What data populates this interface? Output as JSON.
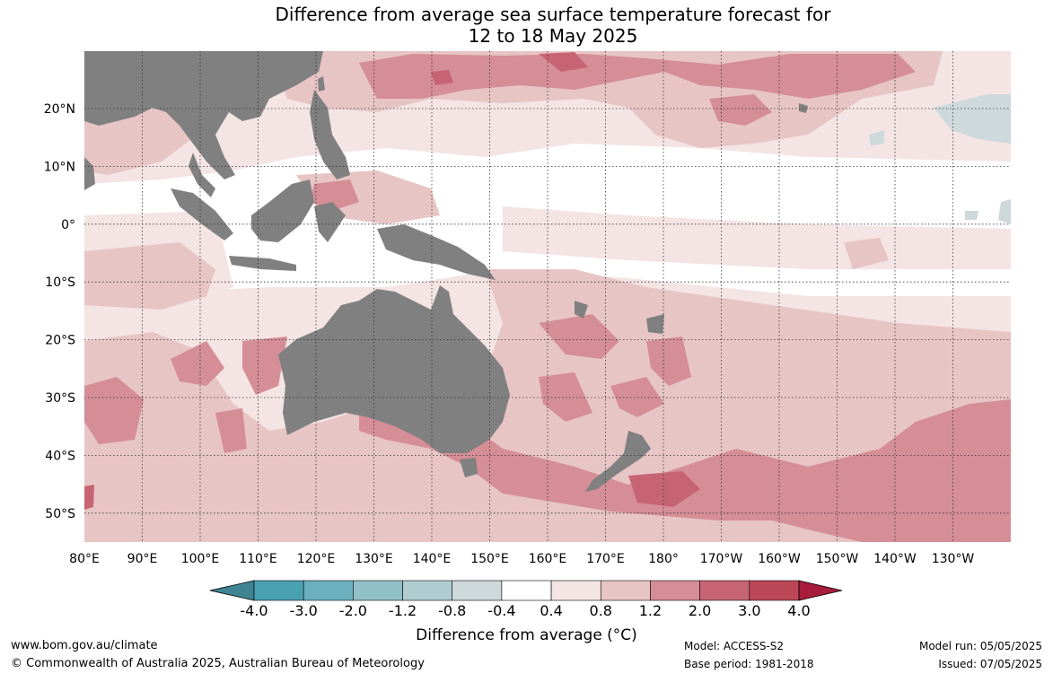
{
  "title": {
    "line1": "Difference from average sea surface temperature forecast for",
    "line2": "12 to 18 May 2025"
  },
  "map": {
    "lon_labels": [
      "80°E",
      "90°E",
      "100°E",
      "110°E",
      "120°E",
      "130°E",
      "140°E",
      "150°E",
      "160°E",
      "170°E",
      "180°",
      "170°W",
      "160°W",
      "150°W",
      "140°W",
      "130°W"
    ],
    "lat_labels": [
      "20°N",
      "10°N",
      "0°",
      "10°S",
      "20°S",
      "30°S",
      "40°S",
      "50°S"
    ],
    "land_color": "#808080",
    "grid": "dotted",
    "extent": {
      "lon_min": 80,
      "lon_max": 240,
      "lat_min": -55,
      "lat_max": 30
    }
  },
  "colorbar": {
    "ticks": [
      "-4.0",
      "-3.0",
      "-2.0",
      "-1.2",
      "-0.8",
      "-0.4",
      "0.4",
      "0.8",
      "1.2",
      "2.0",
      "3.0",
      "4.0"
    ],
    "colors": [
      "#3e8493",
      "#49a1b2",
      "#6cb0bf",
      "#92c0c8",
      "#b0cdd2",
      "#ced9db",
      "#ffffff",
      "#f4e4e4",
      "#e7c5c4",
      "#d58d96",
      "#c76474",
      "#bb4655",
      "#a81d3c"
    ],
    "label": "Difference from average (°C)"
  },
  "footer": {
    "url": "www.bom.gov.au/climate",
    "copyright": "© Commonwealth of Australia 2025, Australian Bureau of Meteorology",
    "model": "Model: ACCESS-S2",
    "base_period": "Base period: 1981-2018",
    "model_run": "Model run: 05/05/2025",
    "issued": "Issued: 07/05/2025"
  }
}
